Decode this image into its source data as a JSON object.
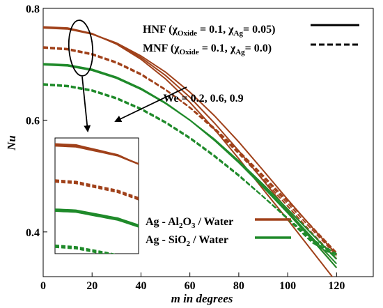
{
  "chart_data": {
    "type": "line",
    "xlabel": "m in degrees",
    "ylabel": "Nu",
    "xlim": [
      0,
      135
    ],
    "ylim": [
      0.32,
      0.8
    ],
    "xticks": [
      0,
      20,
      40,
      60,
      80,
      100,
      120
    ],
    "xtick_labels": [
      "0",
      "20",
      "40",
      "60",
      "80",
      "100",
      "120"
    ],
    "yticks": [
      0.4,
      0.6,
      0.8
    ],
    "ytick_labels": [
      "0.4",
      "0.6",
      "0.8"
    ],
    "grid": false,
    "colors": {
      "al2o3": "#a0411a",
      "sio2": "#1f8a2a"
    },
    "legend_style": {
      "hnf": {
        "prefix": "HNF (",
        "chi": "χ",
        "oxide_sub": "Oxide",
        "oxide_val": " = 0.1, ",
        "ag_sub": "Ag",
        "ag_val": "= 0.05)"
      },
      "mnf": {
        "prefix": "MNF (",
        "chi": "χ",
        "oxide_sub": "Oxide",
        "oxide_val": " = 0.1, ",
        "ag_sub": "Ag",
        "ag_val": "= 0.0)"
      }
    },
    "legend_fluid": {
      "al2o3": {
        "a": "Ag - Al",
        "s1": "2",
        "b": "O",
        "s2": "3",
        "c": " / Water"
      },
      "sio2": {
        "a": "Ag - SiO",
        "s1": "2",
        "c": " / Water"
      }
    },
    "annotation": "We = 0.2, 0.6, 0.9",
    "series": [
      {
        "fluid": "Ag-Al2O3/Water",
        "style": "solid",
        "x": [
          0,
          10,
          20,
          30,
          40,
          50,
          60,
          70,
          80,
          90,
          100,
          110,
          120
        ],
        "y": [
          0.767,
          0.765,
          0.755,
          0.736,
          0.709,
          0.674,
          0.632,
          0.584,
          0.531,
          0.476,
          0.422,
          0.366,
          0.31
        ]
      },
      {
        "fluid": "Ag-Al2O3/Water",
        "style": "solid",
        "x": [
          0,
          10,
          20,
          30,
          40,
          50,
          60,
          70,
          80,
          90,
          100,
          110,
          120
        ],
        "y": [
          0.766,
          0.764,
          0.754,
          0.737,
          0.712,
          0.68,
          0.641,
          0.595,
          0.545,
          0.492,
          0.439,
          0.387,
          0.336
        ]
      },
      {
        "fluid": "Ag-Al2O3/Water",
        "style": "solid",
        "x": [
          0,
          10,
          20,
          30,
          40,
          50,
          60,
          70,
          80,
          90,
          100,
          110,
          120
        ],
        "y": [
          0.765,
          0.763,
          0.754,
          0.738,
          0.715,
          0.686,
          0.65,
          0.608,
          0.561,
          0.51,
          0.458,
          0.408,
          0.36
        ]
      },
      {
        "fluid": "Ag-Al2O3/Water",
        "style": "dashed",
        "x": [
          0,
          10,
          20,
          30,
          40,
          50,
          60,
          70,
          80,
          90,
          100,
          110,
          120
        ],
        "y": [
          0.731,
          0.728,
          0.719,
          0.704,
          0.683,
          0.655,
          0.622,
          0.583,
          0.54,
          0.494,
          0.446,
          0.398,
          0.352
        ]
      },
      {
        "fluid": "Ag-Al2O3/Water",
        "style": "dashed",
        "x": [
          0,
          10,
          20,
          30,
          40,
          50,
          60,
          70,
          80,
          90,
          100,
          110,
          120
        ],
        "y": [
          0.73,
          0.727,
          0.718,
          0.703,
          0.682,
          0.655,
          0.623,
          0.585,
          0.543,
          0.498,
          0.451,
          0.404,
          0.358
        ]
      },
      {
        "fluid": "Ag-Al2O3/Water",
        "style": "dashed",
        "x": [
          0,
          10,
          20,
          30,
          40,
          50,
          60,
          70,
          80,
          90,
          100,
          110,
          120
        ],
        "y": [
          0.729,
          0.726,
          0.717,
          0.702,
          0.681,
          0.654,
          0.623,
          0.586,
          0.545,
          0.501,
          0.455,
          0.409,
          0.363
        ]
      },
      {
        "fluid": "Ag-SiO2/Water",
        "style": "solid",
        "x": [
          0,
          10,
          20,
          30,
          40,
          50,
          60,
          70,
          80,
          90,
          100,
          110,
          120
        ],
        "y": [
          0.701,
          0.699,
          0.691,
          0.677,
          0.657,
          0.631,
          0.6,
          0.564,
          0.524,
          0.48,
          0.434,
          0.386,
          0.336
        ]
      },
      {
        "fluid": "Ag-SiO2/Water",
        "style": "solid",
        "x": [
          0,
          10,
          20,
          30,
          40,
          50,
          60,
          70,
          80,
          90,
          100,
          110,
          120
        ],
        "y": [
          0.7,
          0.698,
          0.69,
          0.676,
          0.656,
          0.631,
          0.6,
          0.565,
          0.525,
          0.482,
          0.437,
          0.39,
          0.343
        ]
      },
      {
        "fluid": "Ag-SiO2/Water",
        "style": "solid",
        "x": [
          0,
          10,
          20,
          30,
          40,
          50,
          60,
          70,
          80,
          90,
          100,
          110,
          120
        ],
        "y": [
          0.699,
          0.697,
          0.689,
          0.675,
          0.655,
          0.63,
          0.6,
          0.566,
          0.527,
          0.485,
          0.441,
          0.396,
          0.351
        ]
      },
      {
        "fluid": "Ag-SiO2/Water",
        "style": "dashed",
        "x": [
          0,
          10,
          20,
          30,
          40,
          50,
          60,
          70,
          80,
          90,
          100,
          110,
          120
        ],
        "y": [
          0.665,
          0.662,
          0.654,
          0.64,
          0.621,
          0.597,
          0.569,
          0.537,
          0.502,
          0.463,
          0.423,
          0.381,
          0.355
        ]
      },
      {
        "fluid": "Ag-SiO2/Water",
        "style": "dashed",
        "x": [
          0,
          10,
          20,
          30,
          40,
          50,
          60,
          70,
          80,
          90,
          100,
          110,
          120
        ],
        "y": [
          0.664,
          0.661,
          0.653,
          0.639,
          0.62,
          0.596,
          0.568,
          0.536,
          0.501,
          0.463,
          0.424,
          0.384,
          0.358
        ]
      },
      {
        "fluid": "Ag-SiO2/Water",
        "style": "dashed",
        "x": [
          0,
          10,
          20,
          30,
          40,
          50,
          60,
          70,
          80,
          90,
          100,
          110,
          120
        ],
        "y": [
          0.663,
          0.66,
          0.652,
          0.638,
          0.619,
          0.595,
          0.567,
          0.535,
          0.5,
          0.463,
          0.425,
          0.387,
          0.361
        ]
      }
    ]
  }
}
